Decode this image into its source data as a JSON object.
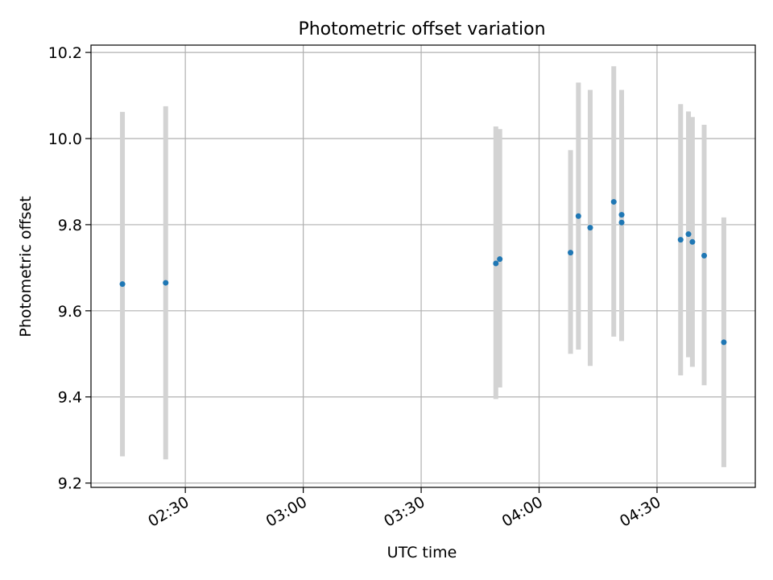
{
  "chart_data": {
    "type": "scatter",
    "title": "Photometric offset variation",
    "xlabel": "UTC time",
    "ylabel": "Photometric offset",
    "xlim": [
      "02:06",
      "04:55"
    ],
    "ylim": [
      9.19,
      10.217
    ],
    "xticks": [
      "02:30",
      "03:00",
      "03:30",
      "04:00",
      "04:30"
    ],
    "yticks": [
      9.2,
      9.4,
      9.6,
      9.8,
      10.0,
      10.2
    ],
    "grid": true,
    "error_bar_color": "#d3d3d3",
    "point_color": "#1f77b4",
    "points": [
      {
        "t": "02:14",
        "y": 9.662,
        "lo": 9.262,
        "hi": 10.062
      },
      {
        "t": "02:25",
        "y": 9.665,
        "lo": 9.255,
        "hi": 10.075
      },
      {
        "t": "03:49",
        "y": 9.71,
        "lo": 9.395,
        "hi": 10.028
      },
      {
        "t": "03:50",
        "y": 9.72,
        "lo": 9.422,
        "hi": 10.022
      },
      {
        "t": "04:08",
        "y": 9.735,
        "lo": 9.5,
        "hi": 9.973
      },
      {
        "t": "04:10",
        "y": 9.82,
        "lo": 9.51,
        "hi": 10.13
      },
      {
        "t": "04:13",
        "y": 9.793,
        "lo": 9.472,
        "hi": 10.113
      },
      {
        "t": "04:19",
        "y": 9.853,
        "lo": 9.54,
        "hi": 10.168
      },
      {
        "t": "04:21",
        "y": 9.823,
        "lo": 9.53,
        "hi": 10.113
      },
      {
        "t": "04:21",
        "y": 9.805,
        "lo": 9.53,
        "hi": 10.078
      },
      {
        "t": "04:36",
        "y": 9.765,
        "lo": 9.45,
        "hi": 10.08
      },
      {
        "t": "04:38",
        "y": 9.778,
        "lo": 9.492,
        "hi": 10.063
      },
      {
        "t": "04:39",
        "y": 9.76,
        "lo": 9.47,
        "hi": 10.05
      },
      {
        "t": "04:42",
        "y": 9.728,
        "lo": 9.427,
        "hi": 10.032
      },
      {
        "t": "04:47",
        "y": 9.527,
        "lo": 9.237,
        "hi": 9.817
      }
    ]
  }
}
